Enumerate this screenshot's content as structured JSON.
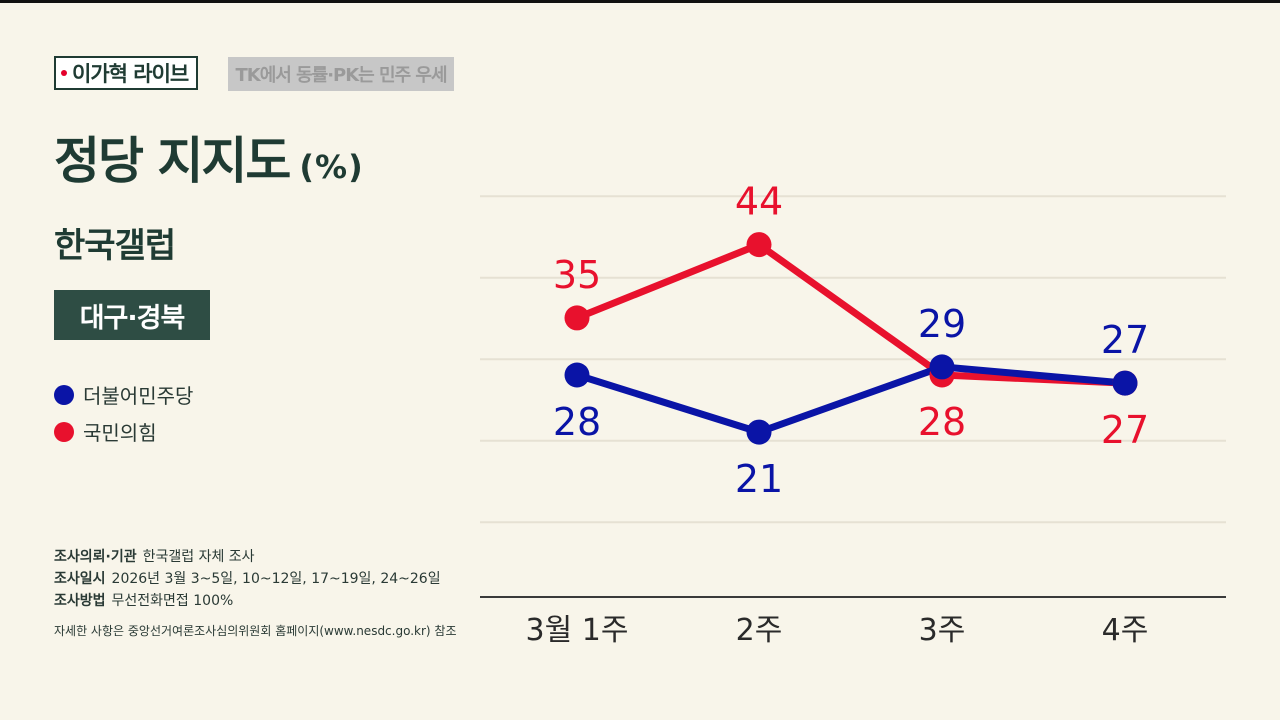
{
  "header": {
    "brand": "이가혁 라이브",
    "subtitle": "TK에서 동률·PK는 민주 우세"
  },
  "title": "정당 지지도",
  "title_unit": "(%)",
  "source_label": "한국갤럽",
  "region": "대구·경북",
  "legend": [
    {
      "label": "더불어민주당",
      "color": "#0a14a6"
    },
    {
      "label": "국민의힘",
      "color": "#e8112d"
    }
  ],
  "notes": {
    "client_key": "조사의뢰·기관",
    "client_value": "한국갤럽 자체 조사",
    "period_key": "조사일시",
    "period_value": "2026년 3월 3~5일, 10~12일, 17~19일, 24~26일",
    "method_key": "조사방법",
    "method_value": "무선전화면접 100%",
    "footnote": "자세한 사항은 중앙선거여론조사심의위원회 홈페이지(www.nesdc.go.kr) 참조"
  },
  "chart_data": {
    "type": "line",
    "categories": [
      "3월 1주",
      "2주",
      "3주",
      "4주"
    ],
    "series": [
      {
        "name": "더불어민주당",
        "color": "#0a14a6",
        "values": [
          28,
          21,
          29,
          27
        ]
      },
      {
        "name": "국민의힘",
        "color": "#e8112d",
        "values": [
          35,
          44,
          28,
          27
        ]
      }
    ],
    "title": "정당 지지도",
    "ylim": [
      10,
      50
    ],
    "grid": true
  }
}
